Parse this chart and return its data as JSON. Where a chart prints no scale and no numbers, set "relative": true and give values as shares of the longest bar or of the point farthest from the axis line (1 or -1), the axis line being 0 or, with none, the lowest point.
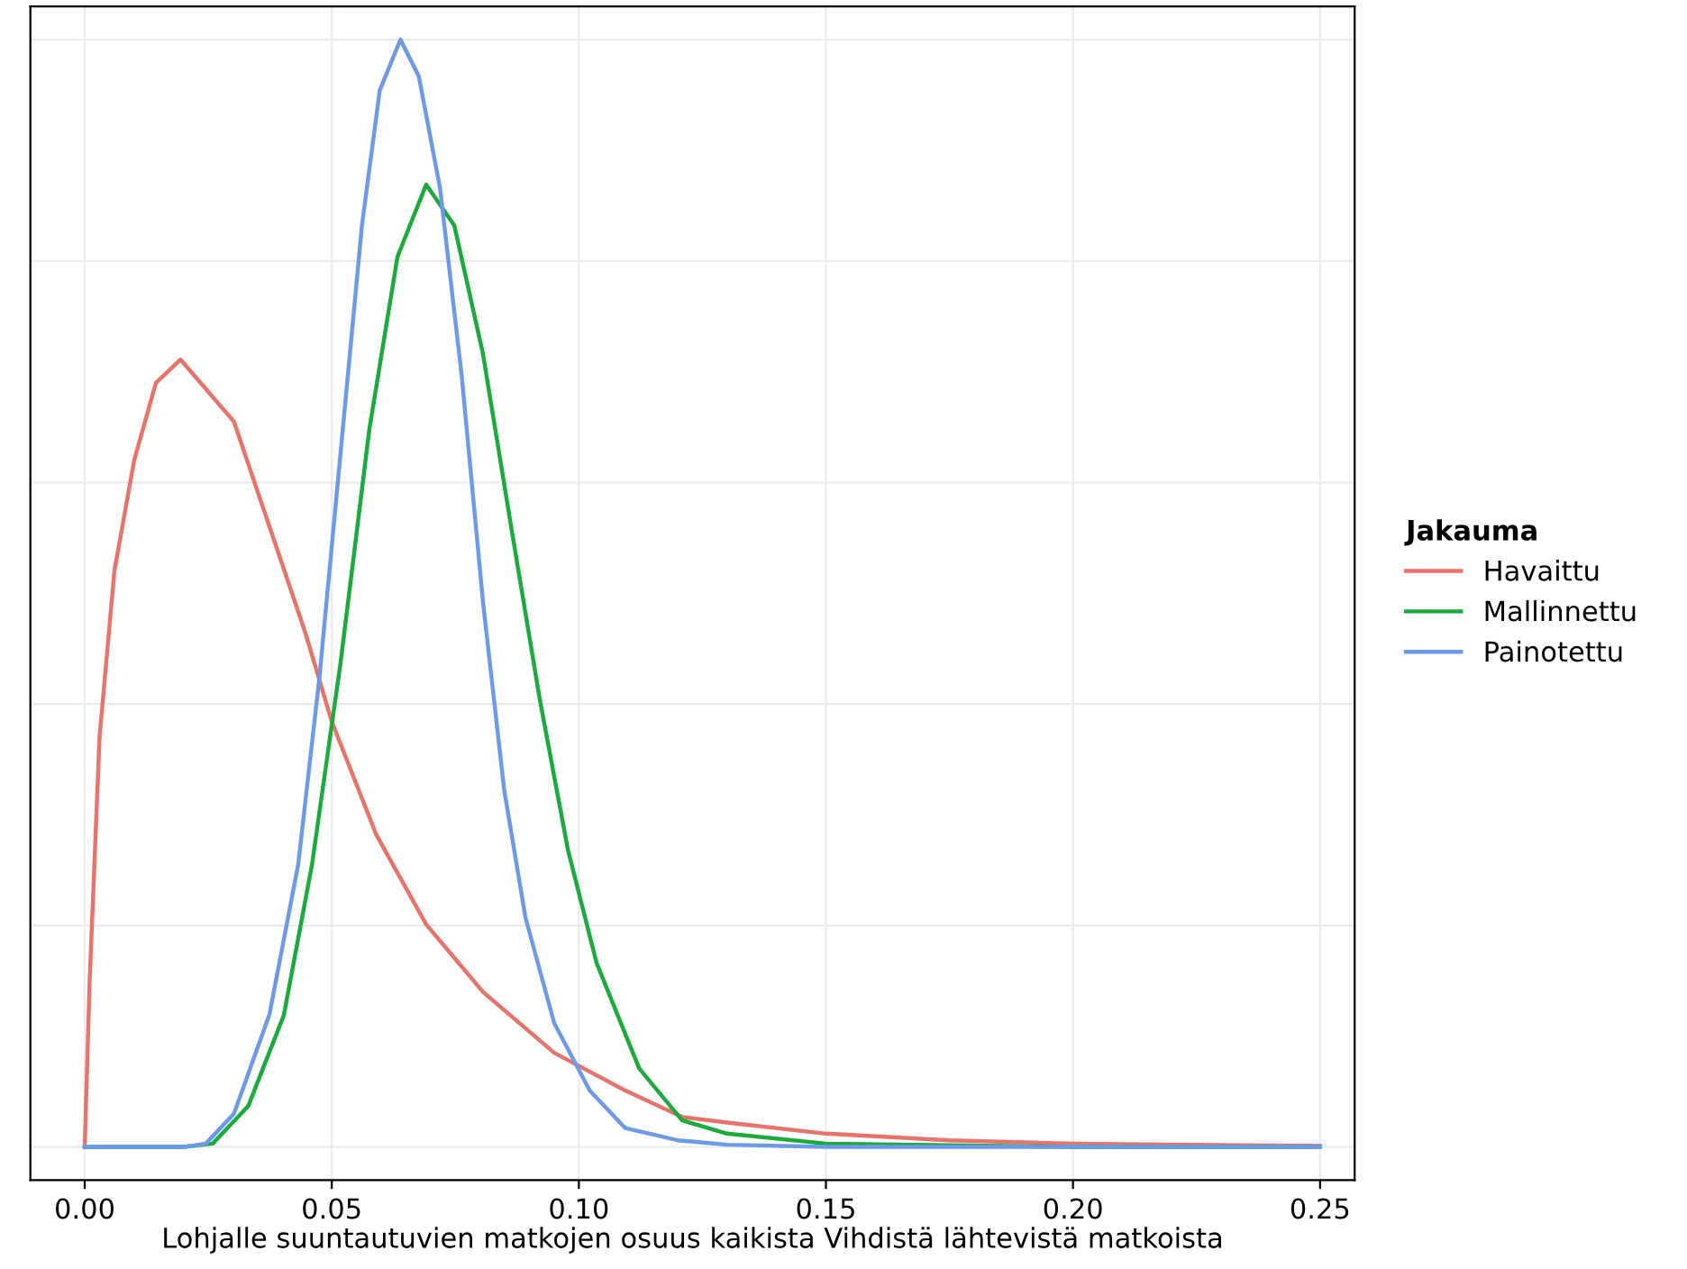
{
  "chart_data": {
    "type": "line",
    "relative": true,
    "xlabel": "Lohjalle suuntautuvien matkojen osuus kaikista Vihdistä lähtevistä matkoista",
    "legend_title": "Jakauma",
    "legend": "right",
    "grid": true,
    "line_style": "solid",
    "marker": "none",
    "xlim": [
      -0.011,
      0.257
    ],
    "xticks": [
      {
        "value": 0,
        "label": "0.00"
      },
      {
        "value": 0.05,
        "label": "0.05"
      },
      {
        "value": 0.1,
        "label": "0.10"
      },
      {
        "value": 0.15,
        "label": "0.15"
      },
      {
        "value": 0.2,
        "label": "0.20"
      },
      {
        "value": 0.25,
        "label": "0.25"
      }
    ],
    "series": [
      {
        "name": "Havaittu",
        "color": "#e8736b",
        "x": [
          0,
          0.001,
          0.003,
          0.006,
          0.01,
          0.0144,
          0.0194,
          0.0302,
          0.0374,
          0.0446,
          0.05,
          0.059,
          0.0691,
          0.0806,
          0.095,
          0.1094,
          0.121,
          0.13,
          0.15,
          0.175,
          0.2,
          0.25
        ],
        "values": [
          0,
          0.15,
          0.37,
          0.52,
          0.62,
          0.69,
          0.711,
          0.655,
          0.56,
          0.465,
          0.384,
          0.282,
          0.201,
          0.14,
          0.085,
          0.051,
          0.027,
          0.022,
          0.012,
          0.006,
          0.003,
          0.001
        ]
      },
      {
        "name": "Mallinnettu",
        "color": "#1aab3c",
        "x": [
          0,
          0.02,
          0.0259,
          0.0331,
          0.0403,
          0.046,
          0.0518,
          0.0576,
          0.0633,
          0.0691,
          0.0748,
          0.0806,
          0.0863,
          0.0921,
          0.0978,
          0.1036,
          0.1122,
          0.1209,
          0.13,
          0.15,
          0.2,
          0.25
        ],
        "values": [
          0,
          0,
          0.003,
          0.037,
          0.119,
          0.255,
          0.438,
          0.648,
          0.804,
          0.869,
          0.832,
          0.716,
          0.56,
          0.404,
          0.268,
          0.166,
          0.071,
          0.024,
          0.012,
          0.003,
          0,
          0
        ]
      },
      {
        "name": "Painotettu",
        "color": "#6c9ae8",
        "x": [
          0,
          0.02,
          0.0245,
          0.0302,
          0.0374,
          0.0432,
          0.0475,
          0.0518,
          0.0561,
          0.0597,
          0.0639,
          0.0676,
          0.0719,
          0.0763,
          0.0806,
          0.0849,
          0.0892,
          0.095,
          0.1022,
          0.1094,
          0.12,
          0.13,
          0.15,
          0.25
        ],
        "values": [
          0,
          0,
          0.003,
          0.03,
          0.12,
          0.255,
          0.424,
          0.628,
          0.832,
          0.954,
          1,
          0.967,
          0.866,
          0.696,
          0.492,
          0.322,
          0.207,
          0.112,
          0.051,
          0.017,
          0.006,
          0.002,
          0,
          0
        ]
      }
    ]
  }
}
